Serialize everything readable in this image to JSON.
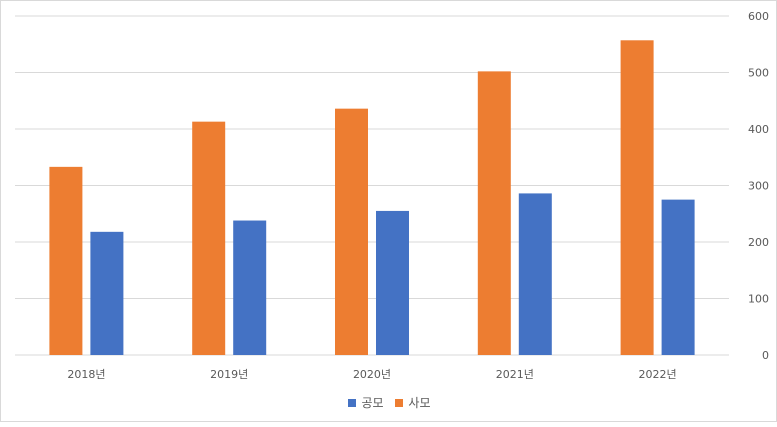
{
  "chart_data": {
    "type": "bar",
    "categories": [
      "2018년",
      "2019년",
      "2020년",
      "2021년",
      "2022년"
    ],
    "series": [
      {
        "name": "사모",
        "values": [
          333,
          413,
          436,
          502,
          557
        ],
        "color": "#ed7d31"
      },
      {
        "name": "공모",
        "values": [
          218,
          238,
          255,
          286,
          275
        ],
        "color": "#4472c4"
      }
    ],
    "yticks": [
      "0",
      "100",
      "200",
      "300",
      "400",
      "500",
      "600"
    ],
    "ylim": [
      0,
      600
    ],
    "y_axis_side": "right",
    "grid": true,
    "legend_position": "bottom",
    "legend_order": [
      "공모",
      "사모"
    ]
  }
}
